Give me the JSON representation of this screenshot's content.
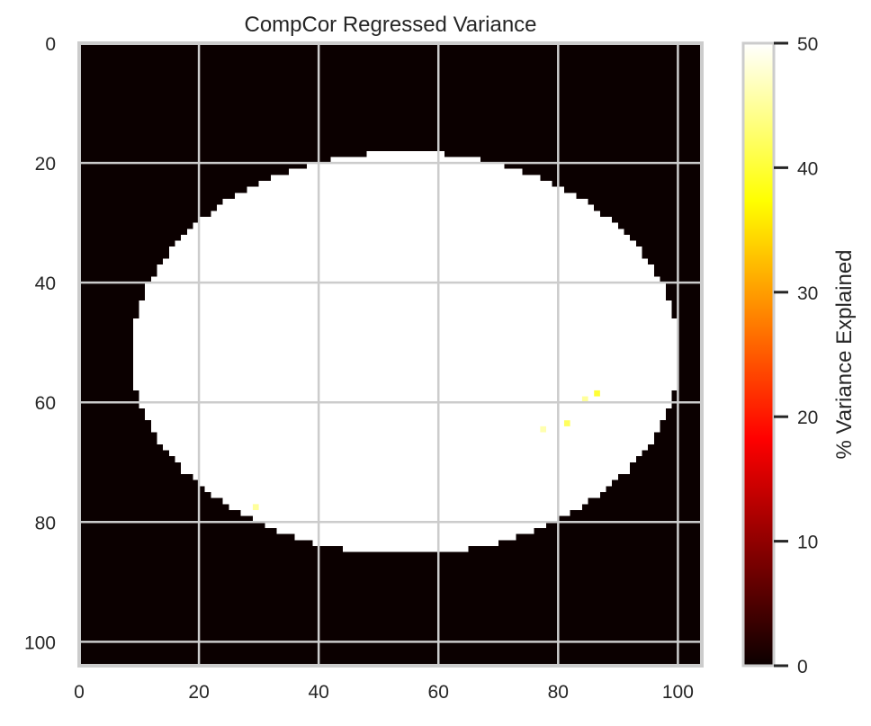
{
  "chart_data": {
    "type": "heatmap",
    "title": "CompCor Regressed Variance",
    "xlabel": "",
    "ylabel": "",
    "xlim": [
      0,
      104
    ],
    "ylim": [
      104,
      0
    ],
    "x_ticks": [
      0,
      20,
      40,
      60,
      80,
      100
    ],
    "y_ticks": [
      0,
      20,
      40,
      60,
      80,
      100
    ],
    "x_tick_labels": [
      "0",
      "20",
      "40",
      "60",
      "80",
      "100"
    ],
    "y_tick_labels": [
      "0",
      "20",
      "40",
      "60",
      "80",
      "100"
    ],
    "grid": true,
    "colormap": "hot",
    "background_value": 0,
    "mask": {
      "value": 50,
      "shape": "ellipse",
      "center": [
        54.5,
        51.8
      ],
      "radii": [
        45.7,
        33.6
      ]
    },
    "highlight_voxels": [
      {
        "x": 29,
        "y": 77,
        "value": 45
      },
      {
        "x": 77,
        "y": 64,
        "value": 46
      },
      {
        "x": 81,
        "y": 63,
        "value": 42
      },
      {
        "x": 84,
        "y": 59,
        "value": 45
      },
      {
        "x": 86,
        "y": 58,
        "value": 40
      }
    ],
    "colorbar": {
      "label": "% Variance Explained",
      "min": 0,
      "max": 50,
      "ticks": [
        0,
        10,
        20,
        30,
        40,
        50
      ],
      "tick_labels": [
        "0",
        "10",
        "20",
        "30",
        "40",
        "50"
      ]
    }
  }
}
